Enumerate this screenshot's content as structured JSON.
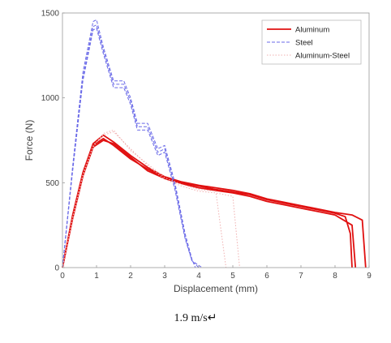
{
  "caption": "1.9 m/s↵",
  "chart_data": {
    "type": "line",
    "title": "",
    "xlabel": "Displacement (mm)",
    "ylabel": "Force (N)",
    "xlim": [
      0,
      9
    ],
    "ylim": [
      0,
      1500
    ],
    "xticks": [
      0,
      1,
      2,
      3,
      4,
      5,
      6,
      7,
      8,
      9
    ],
    "yticks": [
      0,
      500,
      1000,
      1500
    ],
    "legend_position": "top-right",
    "grid": false,
    "series": [
      {
        "name": "Aluminum",
        "color": "#e01010",
        "style": "solid",
        "curves": [
          {
            "x": [
              0,
              0.3,
              0.6,
              0.9,
              1.2,
              1.5,
              2.0,
              2.5,
              3.0,
              3.5,
              4.0,
              4.5,
              5.0,
              5.5,
              6.0,
              6.5,
              7.0,
              7.5,
              8.0,
              8.3,
              8.45,
              8.5
            ],
            "y": [
              0,
              300,
              550,
              720,
              760,
              720,
              640,
              580,
              530,
              500,
              480,
              460,
              445,
              430,
              400,
              380,
              360,
              340,
              320,
              300,
              200,
              0
            ]
          },
          {
            "x": [
              0,
              0.3,
              0.6,
              0.9,
              1.2,
              1.5,
              2.0,
              2.5,
              3.0,
              3.5,
              4.0,
              4.5,
              5.0,
              5.5,
              6.0,
              6.5,
              7.0,
              7.5,
              8.0,
              8.5,
              8.6
            ],
            "y": [
              0,
              290,
              540,
              710,
              750,
              730,
              650,
              570,
              525,
              495,
              470,
              455,
              440,
              420,
              390,
              370,
              350,
              330,
              310,
              250,
              0
            ]
          },
          {
            "x": [
              0,
              0.3,
              0.6,
              0.9,
              1.2,
              1.5,
              2.0,
              2.5,
              3.0,
              3.5,
              4.0,
              4.5,
              5.0,
              5.5,
              6.0,
              6.5,
              7.0,
              7.5,
              8.0,
              8.5,
              8.8,
              8.9
            ],
            "y": [
              0,
              310,
              560,
              730,
              780,
              740,
              660,
              590,
              535,
              505,
              485,
              470,
              455,
              435,
              405,
              385,
              365,
              345,
              325,
              310,
              280,
              0
            ]
          }
        ]
      },
      {
        "name": "Steel",
        "color": "#6a6ae8",
        "style": "dashed",
        "curves": [
          {
            "x": [
              0,
              0.3,
              0.6,
              0.9,
              1.0,
              1.2,
              1.5,
              1.8,
              2.0,
              2.2,
              2.5,
              2.8,
              3.0,
              3.3,
              3.6,
              3.8,
              3.9
            ],
            "y": [
              0,
              600,
              1150,
              1450,
              1460,
              1300,
              1100,
              1100,
              1000,
              850,
              850,
              700,
              720,
              500,
              200,
              50,
              0
            ]
          },
          {
            "x": [
              0,
              0.3,
              0.6,
              0.9,
              1.0,
              1.2,
              1.5,
              1.8,
              2.0,
              2.2,
              2.5,
              2.8,
              3.0,
              3.3,
              3.6,
              3.8,
              4.0
            ],
            "y": [
              0,
              580,
              1120,
              1420,
              1430,
              1280,
              1080,
              1080,
              980,
              830,
              830,
              680,
              700,
              480,
              180,
              40,
              0
            ]
          },
          {
            "x": [
              0,
              0.3,
              0.6,
              0.9,
              1.0,
              1.2,
              1.5,
              1.8,
              2.0,
              2.2,
              2.5,
              2.8,
              3.0,
              3.3,
              3.6,
              3.8,
              4.1
            ],
            "y": [
              0,
              570,
              1100,
              1400,
              1410,
              1260,
              1060,
              1060,
              960,
              810,
              810,
              660,
              680,
              460,
              170,
              40,
              0
            ]
          }
        ]
      },
      {
        "name": "Aluminum-Steel",
        "color": "#f0b0b0",
        "style": "dotted",
        "curves": [
          {
            "x": [
              0,
              0.3,
              0.6,
              0.9,
              1.2,
              1.5,
              2.0,
              2.5,
              3.0,
              3.5,
              4.0,
              4.5,
              5.0,
              5.2
            ],
            "y": [
              0,
              300,
              550,
              720,
              780,
              800,
              700,
              600,
              520,
              480,
              450,
              440,
              420,
              0
            ]
          },
          {
            "x": [
              0,
              0.3,
              0.6,
              0.9,
              1.2,
              1.5,
              2.0,
              2.5,
              3.0,
              3.5,
              4.0,
              4.5,
              4.8
            ],
            "y": [
              0,
              290,
              540,
              710,
              790,
              810,
              690,
              610,
              530,
              490,
              460,
              450,
              0
            ]
          }
        ]
      }
    ]
  }
}
